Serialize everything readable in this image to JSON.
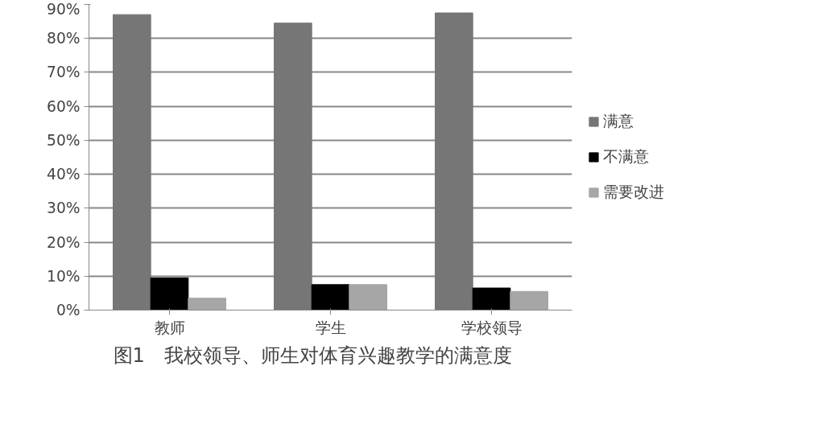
{
  "chart_data": {
    "type": "bar",
    "title": "图1　我校领导、师生对体育兴趣教学的满意度",
    "categories": [
      "教师",
      "学生",
      "学校领导"
    ],
    "series": [
      {
        "name": "满意",
        "color": "#767676",
        "values": [
          87,
          84.5,
          87.5
        ]
      },
      {
        "name": "不满意",
        "color": "#000000",
        "values": [
          9.5,
          7.5,
          6.5
        ]
      },
      {
        "name": "需要改进",
        "color": "#a6a6a6",
        "values": [
          3.5,
          7.5,
          5.5
        ]
      }
    ],
    "ylim": [
      0,
      90
    ],
    "yticks": [
      {
        "value": 0,
        "label": "0%"
      },
      {
        "value": 10,
        "label": "10%"
      },
      {
        "value": 20,
        "label": "20%"
      },
      {
        "value": 30,
        "label": "30%"
      },
      {
        "value": 40,
        "label": "40%"
      },
      {
        "value": 50,
        "label": "50%"
      },
      {
        "value": 60,
        "label": "60%"
      },
      {
        "value": 70,
        "label": "70%"
      },
      {
        "value": 80,
        "label": "80%"
      },
      {
        "value": 90,
        "label": "90%"
      }
    ],
    "grid": "y",
    "legend": "right"
  }
}
